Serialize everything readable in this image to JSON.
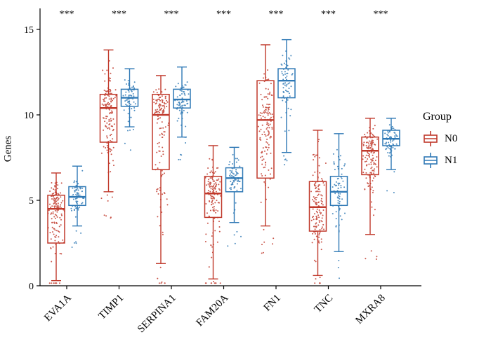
{
  "chart_data": {
    "type": "boxplot",
    "title": "",
    "xlabel": "",
    "ylabel": "Genes",
    "ylim": [
      0,
      16
    ],
    "yticks": [
      0,
      5,
      10,
      15
    ],
    "grid": false,
    "categories": [
      "EVA1A",
      "TIMP1",
      "SERPINA1",
      "FAM20A",
      "FN1",
      "TNC",
      "MXRA8"
    ],
    "significance": [
      "***",
      "***",
      "***",
      "***",
      "***",
      "***",
      "***"
    ],
    "legend": {
      "title": "Group",
      "position": "right",
      "labels": [
        "N0",
        "N1"
      ]
    },
    "groups": [
      {
        "name": "N0",
        "color": "#C0392B",
        "boxes": [
          {
            "low": 0.3,
            "q1": 2.5,
            "med": 4.5,
            "q3": 5.3,
            "high": 6.6
          },
          {
            "low": 5.5,
            "q1": 8.4,
            "med": 10.4,
            "q3": 11.2,
            "high": 13.8
          },
          {
            "low": 1.3,
            "q1": 6.8,
            "med": 10.0,
            "q3": 11.2,
            "high": 12.3
          },
          {
            "low": 0.4,
            "q1": 4.0,
            "med": 5.4,
            "q3": 6.4,
            "high": 8.2
          },
          {
            "low": 3.5,
            "q1": 6.3,
            "med": 9.7,
            "q3": 12.0,
            "high": 14.1
          },
          {
            "low": 0.6,
            "q1": 3.2,
            "med": 4.6,
            "q3": 6.1,
            "high": 9.1
          },
          {
            "low": 3.0,
            "q1": 6.5,
            "med": 7.9,
            "q3": 8.7,
            "high": 9.8
          }
        ]
      },
      {
        "name": "N1",
        "color": "#2E78B5",
        "boxes": [
          {
            "low": 3.5,
            "q1": 4.7,
            "med": 5.2,
            "q3": 5.8,
            "high": 7.0
          },
          {
            "low": 9.3,
            "q1": 10.5,
            "med": 11.0,
            "q3": 11.5,
            "high": 12.7
          },
          {
            "low": 8.7,
            "q1": 10.4,
            "med": 10.9,
            "q3": 11.5,
            "high": 12.8
          },
          {
            "low": 3.7,
            "q1": 5.5,
            "med": 6.3,
            "q3": 6.9,
            "high": 8.1
          },
          {
            "low": 7.8,
            "q1": 11.0,
            "med": 12.0,
            "q3": 12.7,
            "high": 14.4
          },
          {
            "low": 2.0,
            "q1": 4.7,
            "med": 5.5,
            "q3": 6.4,
            "high": 8.9
          },
          {
            "low": 6.8,
            "q1": 8.2,
            "med": 8.6,
            "q3": 9.1,
            "high": 9.8
          }
        ]
      }
    ],
    "jitter_points": {
      "N0": 140,
      "N1": 70
    }
  }
}
